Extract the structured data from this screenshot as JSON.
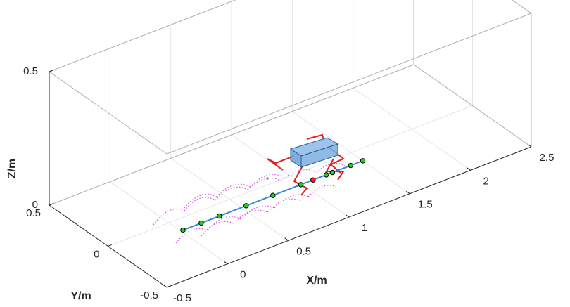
{
  "chart_data": {
    "type": "line3d",
    "xlabel": "X/m",
    "ylabel": "Y/m",
    "zlabel": "Z/m",
    "xlim": [
      -0.5,
      2.5
    ],
    "ylim": [
      -0.5,
      0.5
    ],
    "zlim": [
      0,
      0.5
    ],
    "xticks": [
      -0.5,
      0,
      0.5,
      1,
      1.5,
      2,
      2.5
    ],
    "yticks": [
      -0.5,
      0,
      0.5
    ],
    "zticks": [
      0,
      0.5
    ],
    "grid": true,
    "series": [
      {
        "color": "#3c8ad8",
        "marker_color": "#1fd11f",
        "line": true,
        "x": [
          0.02,
          0.17,
          0.32,
          0.54,
          0.76,
          0.99,
          1.2,
          1.25,
          1.4,
          1.5
        ],
        "y": [
          -0.1,
          -0.1,
          -0.1,
          -0.1,
          -0.1,
          -0.1,
          -0.1,
          -0.1,
          -0.1,
          -0.1
        ],
        "z": [
          0,
          0,
          0,
          0,
          0,
          0,
          0,
          0,
          0,
          0
        ]
      },
      {
        "color": "#3c8ad8",
        "marker_color": "#ff2020",
        "line": false,
        "x": [
          1.09
        ],
        "y": [
          -0.1
        ],
        "z": [
          0
        ]
      }
    ]
  }
}
